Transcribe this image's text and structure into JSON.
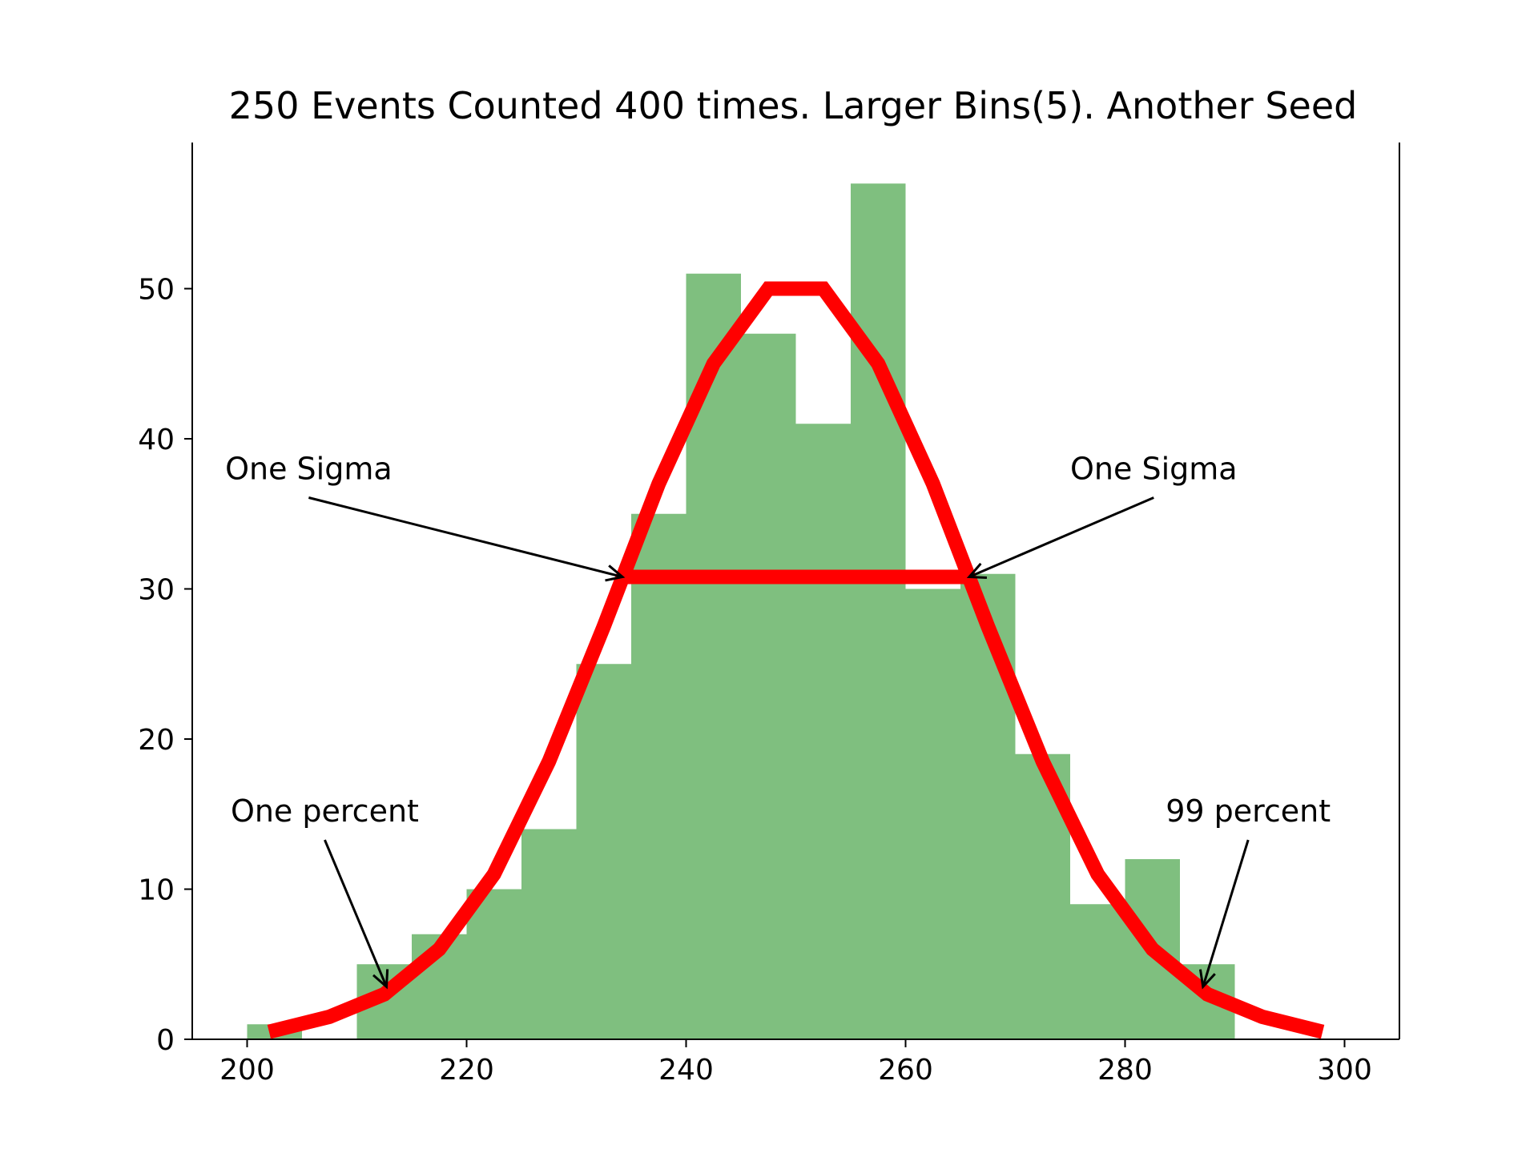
{
  "chart_data": {
    "type": "bar",
    "title": "250 Events Counted 400 times. Larger Bins(5). Another Seed",
    "xlabel": "",
    "ylabel": "",
    "xlim": [
      195,
      305
    ],
    "ylim": [
      0,
      60
    ],
    "xticks": [
      200,
      220,
      240,
      260,
      280,
      300
    ],
    "yticks": [
      0,
      10,
      20,
      30,
      40,
      50
    ],
    "grid": false,
    "bar_color": "#7fbf7f",
    "line_color": "#ff0000",
    "histogram": {
      "bin_edges": [
        200,
        205,
        210,
        215,
        220,
        225,
        230,
        235,
        240,
        245,
        250,
        255,
        260,
        265,
        270,
        275,
        280,
        285,
        290
      ],
      "counts": [
        1,
        0,
        5,
        7,
        10,
        14,
        25,
        35,
        51,
        47,
        41,
        57,
        30,
        31,
        19,
        9,
        12,
        5
      ]
    },
    "curve": {
      "x": [
        202,
        207.5,
        212.5,
        217.5,
        222.5,
        227.5,
        232.5,
        237.5,
        242.5,
        247.5,
        252.5,
        257.5,
        262.5,
        267.5,
        272.5,
        277.5,
        282.5,
        287.5,
        292.5,
        298
      ],
      "y": [
        0.5,
        1.5,
        3,
        6,
        11,
        18.5,
        27.5,
        37,
        45,
        50,
        50,
        45,
        37,
        27.5,
        18.5,
        11,
        6,
        3,
        1.5,
        0.5
      ]
    },
    "sigma_line": {
      "x": [
        234.2,
        265.8
      ],
      "y": 30.8
    },
    "annotations": [
      {
        "text": "One Sigma",
        "text_x": 198,
        "text_y": 38,
        "arrow_x": 234.2,
        "arrow_y": 30.8
      },
      {
        "text": "One Sigma",
        "text_x": 275,
        "text_y": 38,
        "arrow_x": 265.8,
        "arrow_y": 30.8
      },
      {
        "text": "One percent",
        "text_x": 198.5,
        "text_y": 15.2,
        "arrow_x": 212.7,
        "arrow_y": 3.5
      },
      {
        "text": "99 percent",
        "text_x": 283.7,
        "text_y": 15.2,
        "arrow_x": 287.1,
        "arrow_y": 3.5
      }
    ]
  }
}
